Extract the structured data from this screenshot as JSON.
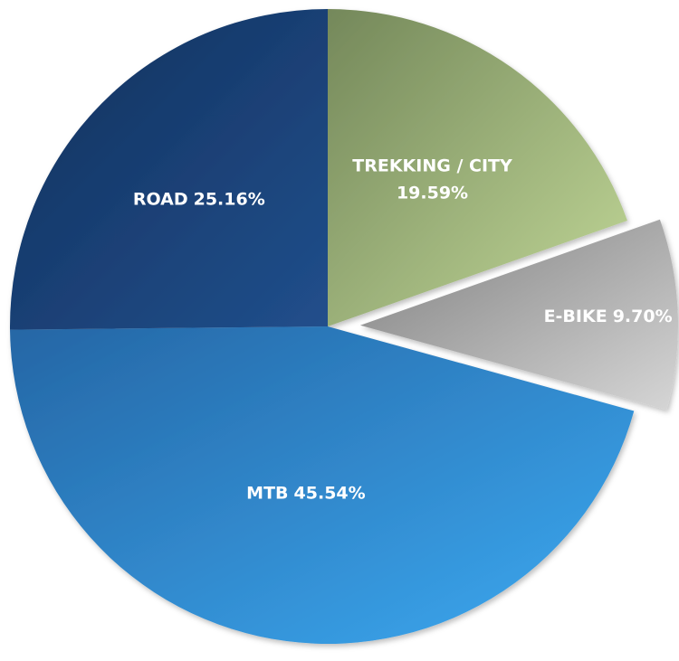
{
  "chart_data": {
    "type": "pie",
    "categories": [
      "TREKKING / CITY",
      "E-BIKE",
      "MTB",
      "ROAD"
    ],
    "values": [
      19.59,
      9.7,
      45.54,
      25.16
    ],
    "value_labels": [
      "19.59%",
      "9.70%",
      "45.54%",
      "25.16%"
    ],
    "colors": [
      [
        "#74885a",
        "#c2d898"
      ],
      [
        "#7e7e7e",
        "#d6d6d6"
      ],
      [
        "#2566a5",
        "#3caaf2"
      ],
      [
        "#12305c",
        "#214f8c"
      ]
    ],
    "exploded": [
      false,
      true,
      false,
      false
    ],
    "start_angle": 0,
    "direction": "clockwise"
  }
}
